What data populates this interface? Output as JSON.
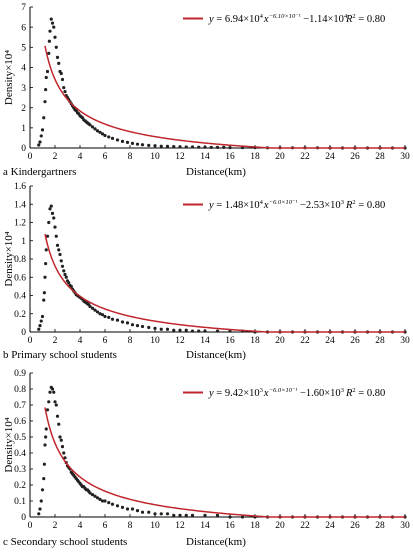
{
  "chart_data": [
    {
      "type": "scatter",
      "panel_label": "a Kindergartners",
      "xlabel": "Distance(km)",
      "ylabel": "Density×10⁴",
      "xlim": [
        0,
        30
      ],
      "ylim": [
        0,
        7
      ],
      "xticks": [
        "0",
        "2",
        "4",
        "6",
        "8",
        "10",
        "12",
        "14",
        "16",
        "18",
        "20",
        "22",
        "24",
        "26",
        "28",
        "30"
      ],
      "yticks": [
        "0",
        "1",
        "2",
        "3",
        "4",
        "5",
        "6",
        "7"
      ],
      "legend": {
        "position": "top-right",
        "line_color": "#c0272d",
        "eq_y": "y",
        "eq_mid": " = 6.94×10",
        "eq_exp1": "4",
        "eq_x": "x",
        "eq_exp2": "−6.10×10⁻¹",
        "eq_tail": " −1.14×10",
        "eq_exp3": "4",
        "r2_label": "R",
        "r2_exp": "2",
        "r2_value": " = 0.80"
      },
      "fit": {
        "a": 6.94,
        "b": -0.61,
        "c": -1.14
      },
      "points": [
        [
          0.7,
          0.15
        ],
        [
          0.8,
          0.3
        ],
        [
          0.9,
          0.6
        ],
        [
          1.0,
          0.9
        ],
        [
          1.1,
          1.5
        ],
        [
          1.2,
          2.3
        ],
        [
          1.25,
          2.9
        ],
        [
          1.3,
          3.5
        ],
        [
          1.4,
          3.8
        ],
        [
          1.5,
          4.7
        ],
        [
          1.55,
          5.3
        ],
        [
          1.6,
          5.8
        ],
        [
          1.7,
          6.4
        ],
        [
          1.8,
          6.2
        ],
        [
          1.9,
          6.0
        ],
        [
          2.0,
          5.5
        ],
        [
          2.1,
          5.0
        ],
        [
          2.2,
          4.5
        ],
        [
          2.3,
          4.2
        ],
        [
          2.4,
          3.8
        ],
        [
          2.5,
          3.7
        ],
        [
          2.6,
          3.4
        ],
        [
          2.7,
          3.0
        ],
        [
          2.8,
          2.8
        ],
        [
          2.9,
          2.6
        ],
        [
          3.0,
          2.5
        ],
        [
          3.1,
          2.4
        ],
        [
          3.2,
          2.3
        ],
        [
          3.3,
          2.2
        ],
        [
          3.4,
          2.1
        ],
        [
          3.5,
          2.0
        ],
        [
          3.6,
          1.9
        ],
        [
          3.7,
          1.85
        ],
        [
          3.8,
          1.75
        ],
        [
          3.9,
          1.7
        ],
        [
          4.0,
          1.6
        ],
        [
          4.1,
          1.55
        ],
        [
          4.2,
          1.5
        ],
        [
          4.3,
          1.4
        ],
        [
          4.4,
          1.35
        ],
        [
          4.5,
          1.3
        ],
        [
          4.6,
          1.25
        ],
        [
          4.7,
          1.2
        ],
        [
          4.8,
          1.15
        ],
        [
          5.0,
          1.05
        ],
        [
          5.2,
          0.95
        ],
        [
          5.4,
          0.85
        ],
        [
          5.6,
          0.78
        ],
        [
          5.8,
          0.7
        ],
        [
          6.0,
          0.62
        ],
        [
          6.3,
          0.55
        ],
        [
          6.6,
          0.48
        ],
        [
          7.0,
          0.4
        ],
        [
          7.4,
          0.33
        ],
        [
          7.8,
          0.28
        ],
        [
          8.2,
          0.23
        ],
        [
          8.6,
          0.19
        ],
        [
          9.0,
          0.16
        ],
        [
          9.5,
          0.13
        ],
        [
          10.0,
          0.11
        ],
        [
          10.5,
          0.09
        ],
        [
          11.0,
          0.08
        ],
        [
          11.5,
          0.07
        ],
        [
          12.0,
          0.06
        ],
        [
          12.5,
          0.05
        ],
        [
          13.0,
          0.05
        ],
        [
          13.5,
          0.04
        ],
        [
          14.0,
          0.04
        ],
        [
          14.5,
          0.03
        ],
        [
          15.0,
          0.03
        ],
        [
          15.5,
          0.03
        ],
        [
          16.0,
          0.02
        ],
        [
          17.0,
          0.02
        ],
        [
          18.0,
          0.02
        ],
        [
          19.0,
          0.01
        ],
        [
          20.0,
          0.01
        ],
        [
          21.0,
          0.01
        ],
        [
          22.0,
          0.01
        ],
        [
          23.0,
          0.01
        ],
        [
          24.0,
          0.0
        ],
        [
          25.0,
          0.0
        ],
        [
          26.0,
          0.0
        ],
        [
          27.0,
          0.0
        ],
        [
          28.0,
          0.0
        ],
        [
          29.0,
          0.0
        ],
        [
          30.0,
          0.0
        ]
      ]
    },
    {
      "type": "scatter",
      "panel_label": "b Primary school students",
      "xlabel": "Distance(km)",
      "ylabel": "Density×10⁴",
      "xlim": [
        0,
        30
      ],
      "ylim": [
        0,
        1.6
      ],
      "xticks": [
        "0",
        "2",
        "4",
        "6",
        "8",
        "10",
        "12",
        "14",
        "16",
        "18",
        "20",
        "22",
        "24",
        "26",
        "28",
        "30"
      ],
      "yticks": [
        "0",
        "0.2",
        "0.4",
        "0.6",
        "0.8",
        "1",
        "1.2",
        "1.4",
        "1.6"
      ],
      "legend": {
        "position": "top-right",
        "line_color": "#c0272d",
        "eq_y": "y",
        "eq_mid": " = 1.48×10",
        "eq_exp1": "4",
        "eq_x": "x",
        "eq_exp2": "−6.0×10⁻¹",
        "eq_tail": " −2.53×10",
        "eq_exp3": "3",
        "r2_label": "R",
        "r2_exp": "2",
        "r2_value": " = 0.80"
      },
      "fit": {
        "a": 1.48,
        "b": -0.6,
        "c": -0.253
      },
      "points": [
        [
          0.7,
          0.03
        ],
        [
          0.8,
          0.07
        ],
        [
          0.9,
          0.12
        ],
        [
          1.0,
          0.17
        ],
        [
          1.1,
          0.35
        ],
        [
          1.15,
          0.43
        ],
        [
          1.2,
          0.6
        ],
        [
          1.25,
          0.75
        ],
        [
          1.3,
          0.9
        ],
        [
          1.4,
          1.05
        ],
        [
          1.5,
          1.2
        ],
        [
          1.6,
          1.35
        ],
        [
          1.7,
          1.38
        ],
        [
          1.8,
          1.3
        ],
        [
          1.9,
          1.25
        ],
        [
          2.0,
          1.15
        ],
        [
          2.1,
          1.05
        ],
        [
          2.2,
          0.95
        ],
        [
          2.3,
          0.9
        ],
        [
          2.4,
          0.85
        ],
        [
          2.5,
          0.78
        ],
        [
          2.6,
          0.72
        ],
        [
          2.7,
          0.67
        ],
        [
          2.8,
          0.63
        ],
        [
          2.9,
          0.6
        ],
        [
          3.0,
          0.56
        ],
        [
          3.1,
          0.54
        ],
        [
          3.2,
          0.51
        ],
        [
          3.3,
          0.5
        ],
        [
          3.4,
          0.47
        ],
        [
          3.5,
          0.45
        ],
        [
          3.6,
          0.43
        ],
        [
          3.7,
          0.41
        ],
        [
          3.8,
          0.4
        ],
        [
          3.9,
          0.39
        ],
        [
          4.0,
          0.38
        ],
        [
          4.1,
          0.37
        ],
        [
          4.2,
          0.36
        ],
        [
          4.3,
          0.34
        ],
        [
          4.4,
          0.33
        ],
        [
          4.5,
          0.32
        ],
        [
          4.6,
          0.31
        ],
        [
          4.7,
          0.3
        ],
        [
          4.8,
          0.28
        ],
        [
          5.0,
          0.26
        ],
        [
          5.2,
          0.24
        ],
        [
          5.4,
          0.22
        ],
        [
          5.6,
          0.2
        ],
        [
          5.8,
          0.19
        ],
        [
          6.0,
          0.17
        ],
        [
          6.3,
          0.16
        ],
        [
          6.6,
          0.14
        ],
        [
          7.0,
          0.13
        ],
        [
          7.4,
          0.11
        ],
        [
          7.8,
          0.1
        ],
        [
          8.2,
          0.08
        ],
        [
          8.6,
          0.07
        ],
        [
          9.0,
          0.06
        ],
        [
          9.5,
          0.05
        ],
        [
          10.0,
          0.04
        ],
        [
          10.5,
          0.03
        ],
        [
          11.0,
          0.03
        ],
        [
          11.5,
          0.02
        ],
        [
          12.0,
          0.02
        ],
        [
          12.5,
          0.02
        ],
        [
          13.0,
          0.01
        ],
        [
          13.5,
          0.01
        ],
        [
          14.0,
          0.01
        ],
        [
          15.0,
          0.01
        ],
        [
          16.0,
          0.01
        ],
        [
          17.0,
          0.01
        ],
        [
          18.0,
          0.0
        ],
        [
          19.0,
          0.0
        ],
        [
          20.0,
          0.0
        ],
        [
          21.0,
          0.0
        ],
        [
          22.0,
          0.0
        ],
        [
          23.0,
          0.0
        ],
        [
          24.0,
          0.0
        ],
        [
          25.0,
          0.0
        ],
        [
          26.0,
          0.0
        ],
        [
          27.0,
          0.0
        ],
        [
          28.0,
          0.0
        ],
        [
          29.0,
          0.0
        ],
        [
          30.0,
          0.0
        ]
      ]
    },
    {
      "type": "scatter",
      "panel_label": "c Secondary school students",
      "xlabel": "Distance(km)",
      "ylabel": "Density×10⁴",
      "xlim": [
        0,
        30
      ],
      "ylim": [
        0,
        0.9
      ],
      "xticks": [
        "0",
        "2",
        "4",
        "6",
        "8",
        "10",
        "12",
        "14",
        "16",
        "18",
        "20",
        "22",
        "24",
        "26",
        "28",
        "30"
      ],
      "yticks": [
        "0",
        "0.1",
        "0.2",
        "0.3",
        "0.4",
        "0.5",
        "0.6",
        "0.7",
        "0.8",
        "0.9"
      ],
      "legend": {
        "position": "top-right",
        "line_color": "#c0272d",
        "eq_y": "y",
        "eq_mid": " = 9.42×10",
        "eq_exp1": "3",
        "eq_x": "x",
        "eq_exp2": "−6.0×10⁻¹",
        "eq_tail": " −1.60×10",
        "eq_exp3": "3",
        "r2_label": "R",
        "r2_exp": "2",
        "r2_value": " = 0.80"
      },
      "fit": {
        "a": 0.942,
        "b": -0.6,
        "c": -0.16
      },
      "points": [
        [
          0.7,
          0.02
        ],
        [
          0.8,
          0.05
        ],
        [
          0.9,
          0.1
        ],
        [
          1.0,
          0.17
        ],
        [
          1.1,
          0.24
        ],
        [
          1.15,
          0.33
        ],
        [
          1.2,
          0.45
        ],
        [
          1.25,
          0.5
        ],
        [
          1.3,
          0.55
        ],
        [
          1.4,
          0.67
        ],
        [
          1.5,
          0.72
        ],
        [
          1.6,
          0.78
        ],
        [
          1.7,
          0.81
        ],
        [
          1.8,
          0.8
        ],
        [
          1.9,
          0.78
        ],
        [
          2.0,
          0.72
        ],
        [
          2.1,
          0.7
        ],
        [
          2.2,
          0.63
        ],
        [
          2.3,
          0.58
        ],
        [
          2.4,
          0.5
        ],
        [
          2.5,
          0.48
        ],
        [
          2.6,
          0.44
        ],
        [
          2.7,
          0.4
        ],
        [
          2.8,
          0.37
        ],
        [
          2.9,
          0.34
        ],
        [
          3.0,
          0.32
        ],
        [
          3.1,
          0.31
        ],
        [
          3.2,
          0.3
        ],
        [
          3.3,
          0.28
        ],
        [
          3.4,
          0.27
        ],
        [
          3.5,
          0.26
        ],
        [
          3.6,
          0.25
        ],
        [
          3.7,
          0.24
        ],
        [
          3.8,
          0.23
        ],
        [
          3.9,
          0.22
        ],
        [
          4.0,
          0.21
        ],
        [
          4.1,
          0.2
        ],
        [
          4.2,
          0.19
        ],
        [
          4.3,
          0.19
        ],
        [
          4.4,
          0.18
        ],
        [
          4.5,
          0.17
        ],
        [
          4.6,
          0.17
        ],
        [
          4.7,
          0.16
        ],
        [
          4.8,
          0.15
        ],
        [
          5.0,
          0.14
        ],
        [
          5.2,
          0.13
        ],
        [
          5.4,
          0.12
        ],
        [
          5.6,
          0.11
        ],
        [
          5.8,
          0.1
        ],
        [
          6.0,
          0.1
        ],
        [
          6.3,
          0.09
        ],
        [
          6.6,
          0.08
        ],
        [
          7.0,
          0.07
        ],
        [
          7.4,
          0.06
        ],
        [
          7.8,
          0.05
        ],
        [
          8.2,
          0.05
        ],
        [
          8.6,
          0.04
        ],
        [
          9.0,
          0.03
        ],
        [
          9.5,
          0.03
        ],
        [
          10.0,
          0.02
        ],
        [
          10.5,
          0.02
        ],
        [
          11.0,
          0.02
        ],
        [
          11.5,
          0.01
        ],
        [
          12.0,
          0.01
        ],
        [
          12.5,
          0.01
        ],
        [
          13.0,
          0.01
        ],
        [
          14.0,
          0.01
        ],
        [
          15.0,
          0.01
        ],
        [
          16.0,
          0.0
        ],
        [
          17.0,
          0.0
        ],
        [
          18.0,
          0.0
        ],
        [
          19.0,
          0.0
        ],
        [
          20.0,
          0.0
        ],
        [
          21.0,
          0.0
        ],
        [
          22.0,
          0.0
        ],
        [
          23.0,
          0.0
        ],
        [
          24.0,
          0.0
        ],
        [
          25.0,
          0.0
        ],
        [
          26.0,
          0.0
        ],
        [
          27.0,
          0.0
        ],
        [
          28.0,
          0.0
        ],
        [
          29.0,
          0.0
        ],
        [
          30.0,
          0.0
        ]
      ]
    }
  ]
}
